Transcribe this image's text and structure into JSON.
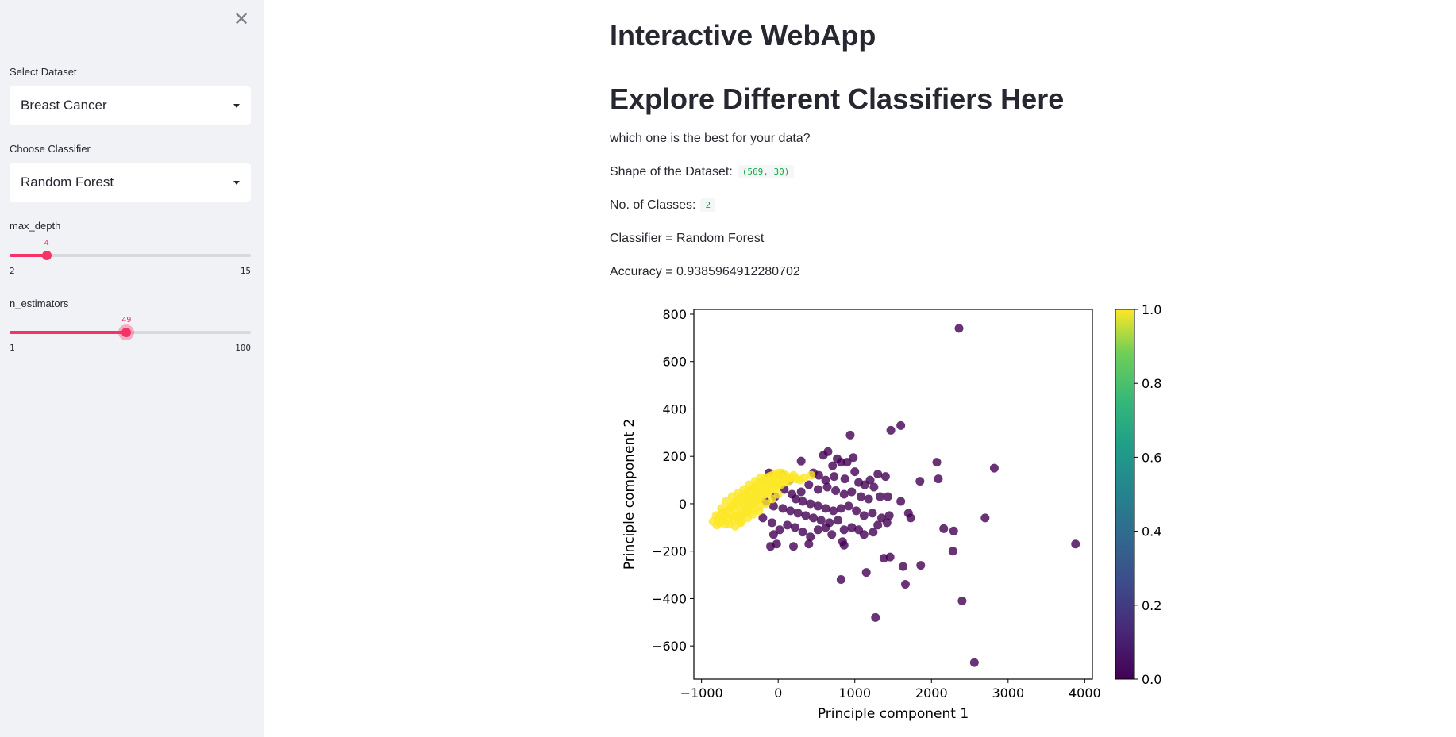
{
  "sidebar": {
    "close_icon": "close-icon",
    "dataset_label": "Select Dataset",
    "dataset_value": "Breast Cancer",
    "classifier_label": "Choose Classifier",
    "classifier_value": "Random Forest",
    "max_depth": {
      "label": "max_depth",
      "min": "2",
      "max": "15",
      "value": 4
    },
    "n_estimators": {
      "label": "n_estimators",
      "min": "1",
      "max": "100",
      "value": 49
    }
  },
  "main": {
    "title": "Interactive WebApp",
    "subtitle": "Explore Different Classifiers Here",
    "question": "which one is the best for your data?",
    "shape_label": "Shape of the Dataset:",
    "shape_value": "(569, 30)",
    "classes_label": "No. of Classes:",
    "classes_value": "2",
    "classifier_text": "Classifier = Random Forest",
    "accuracy_text": "Accuracy = 0.9385964912280702"
  },
  "colors": {
    "accent": "#f63366",
    "sidebar_bg": "#f0f2f6",
    "class0": "#440154",
    "class1": "#fde725"
  },
  "chart_data": {
    "type": "scatter",
    "xlabel": "Principle component 1",
    "ylabel": "Principle component 2",
    "xlim": [
      -1100,
      4100
    ],
    "ylim": [
      -740,
      820
    ],
    "xticks": [
      -1000,
      0,
      1000,
      2000,
      3000,
      4000
    ],
    "yticks": [
      -600,
      -400,
      -200,
      0,
      200,
      400,
      600,
      800
    ],
    "colorbar": {
      "ticks": [
        "0.0",
        "0.2",
        "0.4",
        "0.6",
        "0.8",
        "1.0"
      ],
      "colormap": "viridis"
    },
    "series": [
      {
        "values_class": 0,
        "points": [
          [
            2360,
            740
          ],
          [
            1600,
            330
          ],
          [
            1470,
            310
          ],
          [
            940,
            290
          ],
          [
            2070,
            175
          ],
          [
            2820,
            150
          ],
          [
            2090,
            105
          ],
          [
            1850,
            95
          ],
          [
            1400,
            115
          ],
          [
            770,
            190
          ],
          [
            820,
            175
          ],
          [
            900,
            175
          ],
          [
            980,
            195
          ],
          [
            300,
            180
          ],
          [
            1000,
            135
          ],
          [
            1300,
            125
          ],
          [
            1200,
            100
          ],
          [
            650,
            220
          ],
          [
            590,
            205
          ],
          [
            710,
            160
          ],
          [
            460,
            130
          ],
          [
            530,
            120
          ],
          [
            620,
            100
          ],
          [
            730,
            115
          ],
          [
            870,
            105
          ],
          [
            1050,
            90
          ],
          [
            1130,
            80
          ],
          [
            1250,
            70
          ],
          [
            400,
            80
          ],
          [
            520,
            60
          ],
          [
            640,
            70
          ],
          [
            750,
            55
          ],
          [
            860,
            40
          ],
          [
            960,
            50
          ],
          [
            1080,
            30
          ],
          [
            1180,
            20
          ],
          [
            1330,
            30
          ],
          [
            1430,
            30
          ],
          [
            1600,
            10
          ],
          [
            300,
            50
          ],
          [
            180,
            40
          ],
          [
            80,
            60
          ],
          [
            -40,
            30
          ],
          [
            -120,
            130
          ],
          [
            50,
            120
          ],
          [
            150,
            100
          ],
          [
            230,
            20
          ],
          [
            320,
            10
          ],
          [
            420,
            0
          ],
          [
            520,
            -10
          ],
          [
            620,
            -20
          ],
          [
            720,
            -30
          ],
          [
            820,
            -20
          ],
          [
            920,
            -10
          ],
          [
            1020,
            -30
          ],
          [
            1120,
            -50
          ],
          [
            1230,
            -40
          ],
          [
            1350,
            -60
          ],
          [
            1450,
            -50
          ],
          [
            1700,
            -40
          ],
          [
            1730,
            -60
          ],
          [
            2700,
            -60
          ],
          [
            2160,
            -105
          ],
          [
            2290,
            -115
          ],
          [
            3880,
            -170
          ],
          [
            1300,
            -90
          ],
          [
            1420,
            -80
          ],
          [
            1240,
            -120
          ],
          [
            1120,
            -130
          ],
          [
            1050,
            -110
          ],
          [
            960,
            -100
          ],
          [
            860,
            -110
          ],
          [
            780,
            -70
          ],
          [
            670,
            -80
          ],
          [
            560,
            -70
          ],
          [
            460,
            -60
          ],
          [
            360,
            -50
          ],
          [
            260,
            -40
          ],
          [
            160,
            -30
          ],
          [
            60,
            -20
          ],
          [
            -60,
            -10
          ],
          [
            -160,
            10
          ],
          [
            -200,
            -60
          ],
          [
            -80,
            -80
          ],
          [
            20,
            -110
          ],
          [
            120,
            -90
          ],
          [
            220,
            -100
          ],
          [
            320,
            -120
          ],
          [
            420,
            -140
          ],
          [
            520,
            -110
          ],
          [
            620,
            -100
          ],
          [
            700,
            -130
          ],
          [
            840,
            -160
          ],
          [
            860,
            -175
          ],
          [
            400,
            -170
          ],
          [
            200,
            -180
          ],
          [
            -100,
            -180
          ],
          [
            -60,
            -130
          ],
          [
            -20,
            -170
          ],
          [
            1380,
            -230
          ],
          [
            1460,
            -225
          ],
          [
            1630,
            -265
          ],
          [
            1860,
            -260
          ],
          [
            1150,
            -290
          ],
          [
            820,
            -320
          ],
          [
            1660,
            -340
          ],
          [
            2280,
            -200
          ],
          [
            2400,
            -410
          ],
          [
            1270,
            -480
          ],
          [
            2560,
            -670
          ]
        ]
      },
      {
        "values_class": 1,
        "points": [
          [
            -850,
            -75
          ],
          [
            -800,
            -90
          ],
          [
            -780,
            -60
          ],
          [
            -760,
            -80
          ],
          [
            -740,
            -40
          ],
          [
            -720,
            -70
          ],
          [
            -700,
            -50
          ],
          [
            -690,
            -85
          ],
          [
            -670,
            -30
          ],
          [
            -650,
            -60
          ],
          [
            -640,
            -20
          ],
          [
            -620,
            -45
          ],
          [
            -600,
            -10
          ],
          [
            -590,
            -70
          ],
          [
            -570,
            0
          ],
          [
            -560,
            -30
          ],
          [
            -540,
            10
          ],
          [
            -530,
            -55
          ],
          [
            -510,
            20
          ],
          [
            -500,
            -15
          ],
          [
            -490,
            -80
          ],
          [
            -470,
            30
          ],
          [
            -460,
            -5
          ],
          [
            -450,
            -40
          ],
          [
            -430,
            40
          ],
          [
            -420,
            10
          ],
          [
            -410,
            -25
          ],
          [
            -390,
            50
          ],
          [
            -380,
            20
          ],
          [
            -370,
            -10
          ],
          [
            -350,
            60
          ],
          [
            -340,
            30
          ],
          [
            -330,
            0
          ],
          [
            -310,
            70
          ],
          [
            -300,
            40
          ],
          [
            -290,
            10
          ],
          [
            -270,
            80
          ],
          [
            -260,
            50
          ],
          [
            -250,
            20
          ],
          [
            -230,
            90
          ],
          [
            -220,
            60
          ],
          [
            -210,
            30
          ],
          [
            -190,
            100
          ],
          [
            -180,
            70
          ],
          [
            -170,
            40
          ],
          [
            -150,
            110
          ],
          [
            -140,
            80
          ],
          [
            -130,
            50
          ],
          [
            -110,
            115
          ],
          [
            -100,
            90
          ],
          [
            -90,
            60
          ],
          [
            -70,
            120
          ],
          [
            -60,
            95
          ],
          [
            -50,
            70
          ],
          [
            -30,
            125
          ],
          [
            -20,
            100
          ],
          [
            -10,
            75
          ],
          [
            10,
            130
          ],
          [
            20,
            105
          ],
          [
            30,
            80
          ],
          [
            50,
            130
          ],
          [
            60,
            110
          ],
          [
            80,
            90
          ],
          [
            100,
            120
          ],
          [
            120,
            105
          ],
          [
            140,
            95
          ],
          [
            170,
            110
          ],
          [
            200,
            120
          ],
          [
            240,
            105
          ],
          [
            290,
            100
          ],
          [
            340,
            110
          ],
          [
            430,
            120
          ],
          [
            -560,
            -55
          ],
          [
            -480,
            -50
          ],
          [
            -400,
            -35
          ],
          [
            -320,
            -25
          ],
          [
            -240,
            -10
          ],
          [
            -160,
            0
          ],
          [
            -80,
            20
          ],
          [
            0,
            40
          ],
          [
            -640,
            -85
          ],
          [
            -560,
            -95
          ],
          [
            -480,
            -75
          ],
          [
            -400,
            -60
          ],
          [
            -330,
            -45
          ],
          [
            -250,
            -30
          ],
          [
            -600,
            30
          ],
          [
            -520,
            45
          ],
          [
            -450,
            60
          ],
          [
            -380,
            80
          ],
          [
            -300,
            95
          ],
          [
            -230,
            110
          ],
          [
            -680,
            10
          ],
          [
            -740,
            -20
          ],
          [
            -810,
            -50
          ]
        ]
      }
    ]
  }
}
